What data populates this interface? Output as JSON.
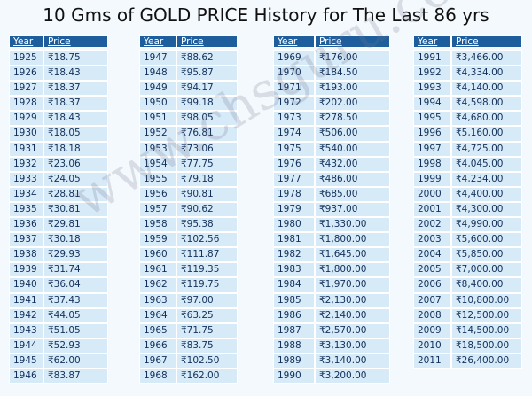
{
  "header": {
    "title": "10 Gms of GOLD PRICE History for The Last 86 yrs"
  },
  "watermark": "www.chsguru.com",
  "tables": [
    {
      "header": [
        "Year",
        "Price"
      ],
      "rows": [
        [
          "1925",
          "₹18.75"
        ],
        [
          "1926",
          "₹18.43"
        ],
        [
          "1927",
          "₹18.37"
        ],
        [
          "1928",
          "₹18.37"
        ],
        [
          "1929",
          "₹18.43"
        ],
        [
          "1930",
          "₹18.05"
        ],
        [
          "1931",
          "₹18.18"
        ],
        [
          "1932",
          "₹23.06"
        ],
        [
          "1933",
          "₹24.05"
        ],
        [
          "1934",
          "₹28.81"
        ],
        [
          "1935",
          "₹30.81"
        ],
        [
          "1936",
          "₹29.81"
        ],
        [
          "1937",
          "₹30.18"
        ],
        [
          "1938",
          "₹29.93"
        ],
        [
          "1939",
          "₹31.74"
        ],
        [
          "1940",
          "₹36.04"
        ],
        [
          "1941",
          "₹37.43"
        ],
        [
          "1942",
          "₹44.05"
        ],
        [
          "1943",
          "₹51.05"
        ],
        [
          "1944",
          "₹52.93"
        ],
        [
          "1945",
          "₹62.00"
        ],
        [
          "1946",
          "₹83.87"
        ]
      ]
    },
    {
      "header": [
        "Year",
        "Price"
      ],
      "rows": [
        [
          "1947",
          "₹88.62"
        ],
        [
          "1948",
          "₹95.87"
        ],
        [
          "1949",
          "₹94.17"
        ],
        [
          "1950",
          "₹99.18"
        ],
        [
          "1951",
          "₹98.05"
        ],
        [
          "1952",
          "₹76.81"
        ],
        [
          "1953",
          "₹73.06"
        ],
        [
          "1954",
          "₹77.75"
        ],
        [
          "1955",
          "₹79.18"
        ],
        [
          "1956",
          "₹90.81"
        ],
        [
          "1957",
          "₹90.62"
        ],
        [
          "1958",
          "₹95.38"
        ],
        [
          "1959",
          "₹102.56"
        ],
        [
          "1960",
          "₹111.87"
        ],
        [
          "1961",
          "₹119.35"
        ],
        [
          "1962",
          "₹119.75"
        ],
        [
          "1963",
          "₹97.00"
        ],
        [
          "1964",
          "₹63.25"
        ],
        [
          "1965",
          "₹71.75"
        ],
        [
          "1966",
          "₹83.75"
        ],
        [
          "1967",
          "₹102.50"
        ],
        [
          "1968",
          "₹162.00"
        ]
      ]
    },
    {
      "header": [
        "Year",
        "Price"
      ],
      "rows": [
        [
          "1969",
          "₹176.00"
        ],
        [
          "1970",
          "₹184.50"
        ],
        [
          "1971",
          "₹193.00"
        ],
        [
          "1972",
          "₹202.00"
        ],
        [
          "1973",
          "₹278.50"
        ],
        [
          "1974",
          "₹506.00"
        ],
        [
          "1975",
          "₹540.00"
        ],
        [
          "1976",
          "₹432.00"
        ],
        [
          "1977",
          "₹486.00"
        ],
        [
          "1978",
          "₹685.00"
        ],
        [
          "1979",
          "₹937.00"
        ],
        [
          "1980",
          "₹1,330.00"
        ],
        [
          "1981",
          "₹1,800.00"
        ],
        [
          "1982",
          "₹1,645.00"
        ],
        [
          "1983",
          "₹1,800.00"
        ],
        [
          "1984",
          "₹1,970.00"
        ],
        [
          "1985",
          "₹2,130.00"
        ],
        [
          "1986",
          "₹2,140.00"
        ],
        [
          "1987",
          "₹2,570.00"
        ],
        [
          "1988",
          "₹3,130.00"
        ],
        [
          "1989",
          "₹3,140.00"
        ],
        [
          "1990",
          "₹3,200.00"
        ]
      ]
    },
    {
      "header": [
        "Year",
        "Price"
      ],
      "rows": [
        [
          "1991",
          "₹3,466.00"
        ],
        [
          "1992",
          "₹4,334.00"
        ],
        [
          "1993",
          "₹4,140.00"
        ],
        [
          "1994",
          "₹4,598.00"
        ],
        [
          "1995",
          "₹4,680.00"
        ],
        [
          "1996",
          "₹5,160.00"
        ],
        [
          "1997",
          "₹4,725.00"
        ],
        [
          "1998",
          "₹4,045.00"
        ],
        [
          "1999",
          "₹4,234.00"
        ],
        [
          "2000",
          "₹4,400.00"
        ],
        [
          "2001",
          "₹4,300.00"
        ],
        [
          "2002",
          "₹4,990.00"
        ],
        [
          "2003",
          "₹5,600.00"
        ],
        [
          "2004",
          "₹5,850.00"
        ],
        [
          "2005",
          "₹7,000.00"
        ],
        [
          "2006",
          "₹8,400.00"
        ],
        [
          "2007",
          "₹10,800.00"
        ],
        [
          "2008",
          "₹12,500.00"
        ],
        [
          "2009",
          "₹14,500.00"
        ],
        [
          "2010",
          "₹18,500.00"
        ],
        [
          "2011",
          "₹26,400.00"
        ]
      ]
    }
  ]
}
